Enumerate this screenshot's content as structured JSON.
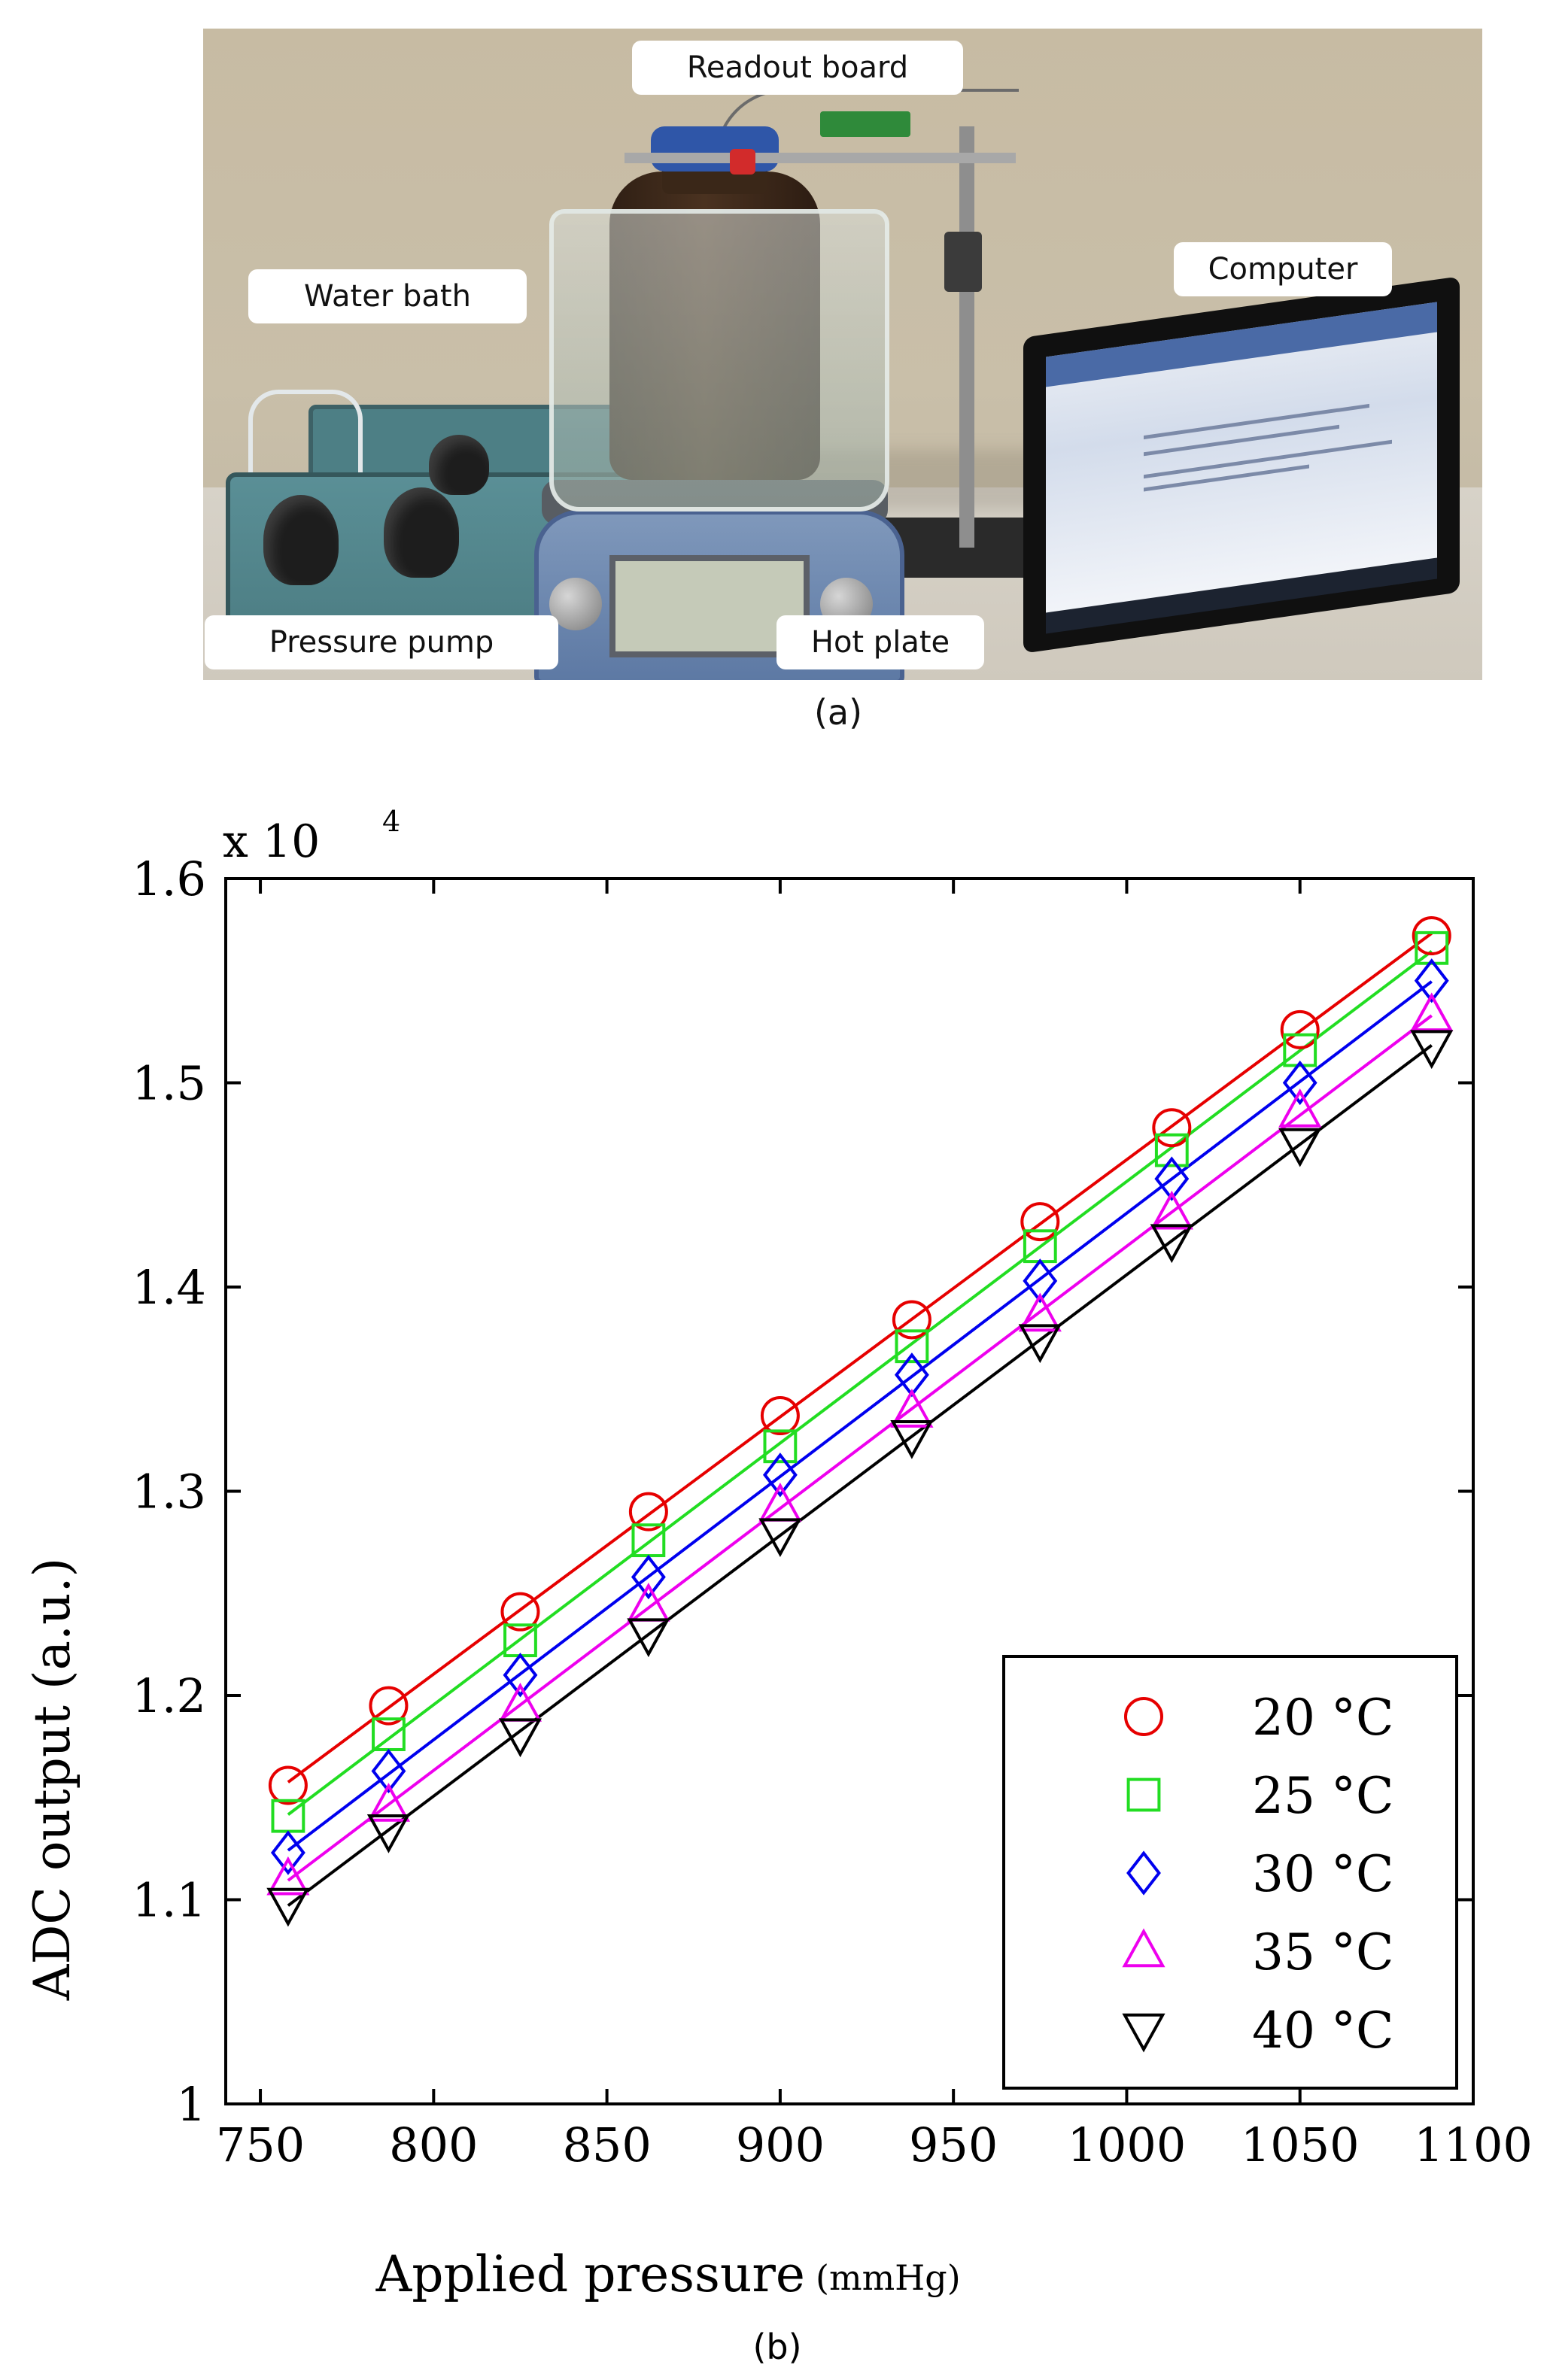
{
  "photo": {
    "labels": {
      "readout_board": "Readout board",
      "water_bath": "Water bath",
      "computer": "Computer",
      "pressure_pump": "Pressure pump",
      "hot_plate": "Hot plate"
    },
    "caption": "(a)"
  },
  "chart_caption": "(b)",
  "chart_data": {
    "type": "scatter",
    "title": "",
    "xlabel": "Applied pressure",
    "xlabel_unit": "(mmHg)",
    "ylabel": "ADC output (a.u.)",
    "y_multiplier": "x 10",
    "y_multiplier_exp": "4",
    "xlim": [
      740,
      1100
    ],
    "ylim": [
      1.0,
      1.6
    ],
    "x_ticks": [
      750,
      800,
      850,
      900,
      950,
      1000,
      1050,
      1100
    ],
    "y_ticks": [
      1,
      1.1,
      1.2,
      1.3,
      1.4,
      1.5,
      1.6
    ],
    "x_tick_labels": [
      "750",
      "800",
      "850",
      "900",
      "950",
      "1000",
      "1050",
      "1100"
    ],
    "y_tick_labels": [
      "1",
      "1.1",
      "1.2",
      "1.3",
      "1.4",
      "1.5",
      "1.6"
    ],
    "grid": false,
    "legend_position": "bottom-right",
    "x": [
      758,
      787,
      825,
      862,
      900,
      938,
      975,
      1013,
      1050,
      1088
    ],
    "series": [
      {
        "name": "20 °C",
        "marker": "circle",
        "color": "#e60000",
        "values": [
          1.156,
          1.195,
          1.241,
          1.29,
          1.337,
          1.384,
          1.432,
          1.478,
          1.526,
          1.572
        ]
      },
      {
        "name": "25 °C",
        "marker": "square",
        "color": "#22dd22",
        "values": [
          1.141,
          1.181,
          1.227,
          1.276,
          1.322,
          1.371,
          1.42,
          1.467,
          1.516,
          1.566
        ]
      },
      {
        "name": "30 °C",
        "marker": "diamond",
        "color": "#0000ee",
        "values": [
          1.123,
          1.163,
          1.21,
          1.258,
          1.308,
          1.357,
          1.403,
          1.453,
          1.5,
          1.55
        ]
      },
      {
        "name": "35 °C",
        "marker": "triangle-up",
        "color": "#ee00ee",
        "values": [
          1.11,
          1.146,
          1.195,
          1.244,
          1.293,
          1.339,
          1.386,
          1.436,
          1.486,
          1.533
        ]
      },
      {
        "name": "40 °C",
        "marker": "triangle-down",
        "color": "#000000",
        "values": [
          1.098,
          1.134,
          1.181,
          1.23,
          1.279,
          1.327,
          1.374,
          1.423,
          1.47,
          1.518
        ]
      }
    ]
  }
}
